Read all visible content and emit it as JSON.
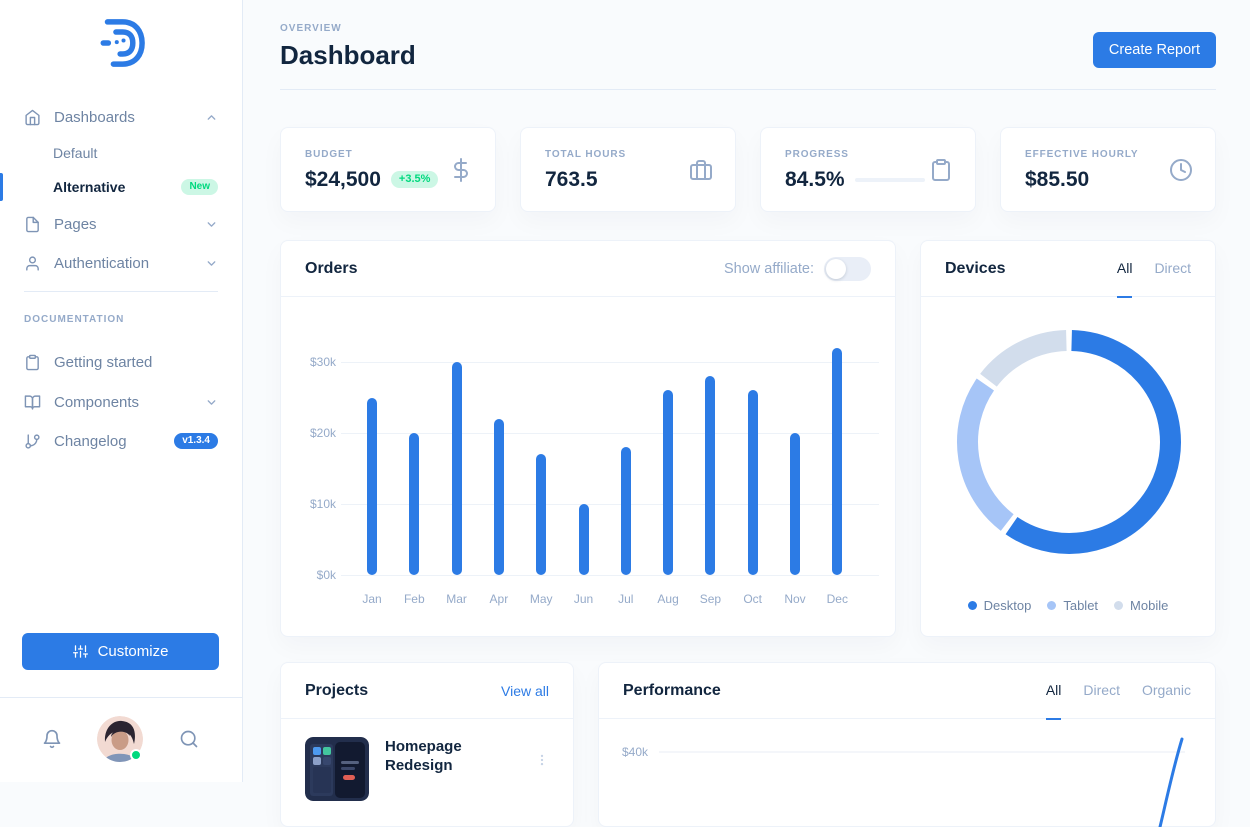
{
  "colors": {
    "primary": "#2C7BE5",
    "heading": "#12263F",
    "body_text": "#6E84A3",
    "muted": "#95AAC9",
    "border": "#E3EBF6",
    "card_border": "#EDF2F9",
    "page_bg": "#F9FBFD",
    "success": "#00D97E",
    "success_soft_bg": "#CCF7E5"
  },
  "icons": {
    "sidebar": [
      "home-icon",
      "file-icon",
      "user-icon",
      "clipboard-icon",
      "book-open-icon",
      "git-branch-icon"
    ],
    "stats": [
      "dollar-sign-icon",
      "briefcase-icon",
      "clipboard-icon",
      "clock-icon"
    ],
    "other": [
      "sliders-icon",
      "bell-icon",
      "search-icon",
      "kebab-menu-icon",
      "chevron-up-icon",
      "chevron-down-icon"
    ]
  },
  "sidebar": {
    "nav": [
      {
        "label": "Dashboards",
        "expanded": true
      },
      {
        "label": "Default"
      },
      {
        "label": "Alternative",
        "active": true,
        "badge": "New"
      },
      {
        "label": "Pages"
      },
      {
        "label": "Authentication"
      }
    ],
    "docs_heading": "DOCUMENTATION",
    "docs": [
      {
        "label": "Getting started"
      },
      {
        "label": "Components"
      },
      {
        "label": "Changelog",
        "badge": "v1.3.4"
      }
    ],
    "customize_label": "Customize"
  },
  "header": {
    "overline": "OVERVIEW",
    "title": "Dashboard",
    "create_report_label": "Create Report"
  },
  "stats": [
    {
      "label": "BUDGET",
      "value": "$24,500",
      "delta": "+3.5%"
    },
    {
      "label": "TOTAL HOURS",
      "value": "763.5"
    },
    {
      "label": "PROGRESS",
      "value": "84.5%",
      "progress_pct": 84.5
    },
    {
      "label": "EFFECTIVE HOURLY",
      "value": "$85.50"
    }
  ],
  "orders_card": {
    "title": "Orders",
    "toggle_label": "Show affiliate:",
    "toggle_on": false
  },
  "devices_card": {
    "title": "Devices",
    "tabs": [
      {
        "label": "All",
        "active": true
      },
      {
        "label": "Direct",
        "active": false
      }
    ]
  },
  "projects_card": {
    "title": "Projects",
    "view_all_label": "View all",
    "items": [
      {
        "title": "Homepage Redesign"
      }
    ]
  },
  "performance_card": {
    "title": "Performance",
    "tabs": [
      {
        "label": "All",
        "active": true
      },
      {
        "label": "Direct",
        "active": false
      },
      {
        "label": "Organic",
        "active": false
      }
    ]
  },
  "chart_data": [
    {
      "id": "orders",
      "type": "bar",
      "title": "Orders",
      "categories": [
        "Jan",
        "Feb",
        "Mar",
        "Apr",
        "May",
        "Jun",
        "Jul",
        "Aug",
        "Sep",
        "Oct",
        "Nov",
        "Dec"
      ],
      "values": [
        25,
        20,
        30,
        22,
        17,
        10,
        18,
        26,
        28,
        26,
        20,
        32
      ],
      "value_unit": "$k",
      "yticks": [
        {
          "label": "$0k",
          "value": 0
        },
        {
          "label": "$10k",
          "value": 10
        },
        {
          "label": "$20k",
          "value": 20
        },
        {
          "label": "$30k",
          "value": 30
        }
      ],
      "ylim": [
        0,
        35
      ],
      "bar_color": "#2C7BE5",
      "grid": "horizontal"
    },
    {
      "id": "devices",
      "type": "pie",
      "donut": true,
      "labels": [
        "Desktop",
        "Tablet",
        "Mobile"
      ],
      "values": [
        60,
        25,
        15
      ],
      "colors": [
        "#2C7BE5",
        "#A6C5F7",
        "#D2DDEC"
      ],
      "start_angle_deg": 0,
      "direction": "clockwise",
      "legend_position": "bottom"
    },
    {
      "id": "performance",
      "type": "line",
      "series": [
        {
          "name": "All",
          "color": "#2C7BE5"
        }
      ],
      "yticks": [
        {
          "label": "$40k",
          "value": 40
        }
      ],
      "note": "chart cropped by viewport; only a rising line segment near the right edge is visible"
    }
  ]
}
